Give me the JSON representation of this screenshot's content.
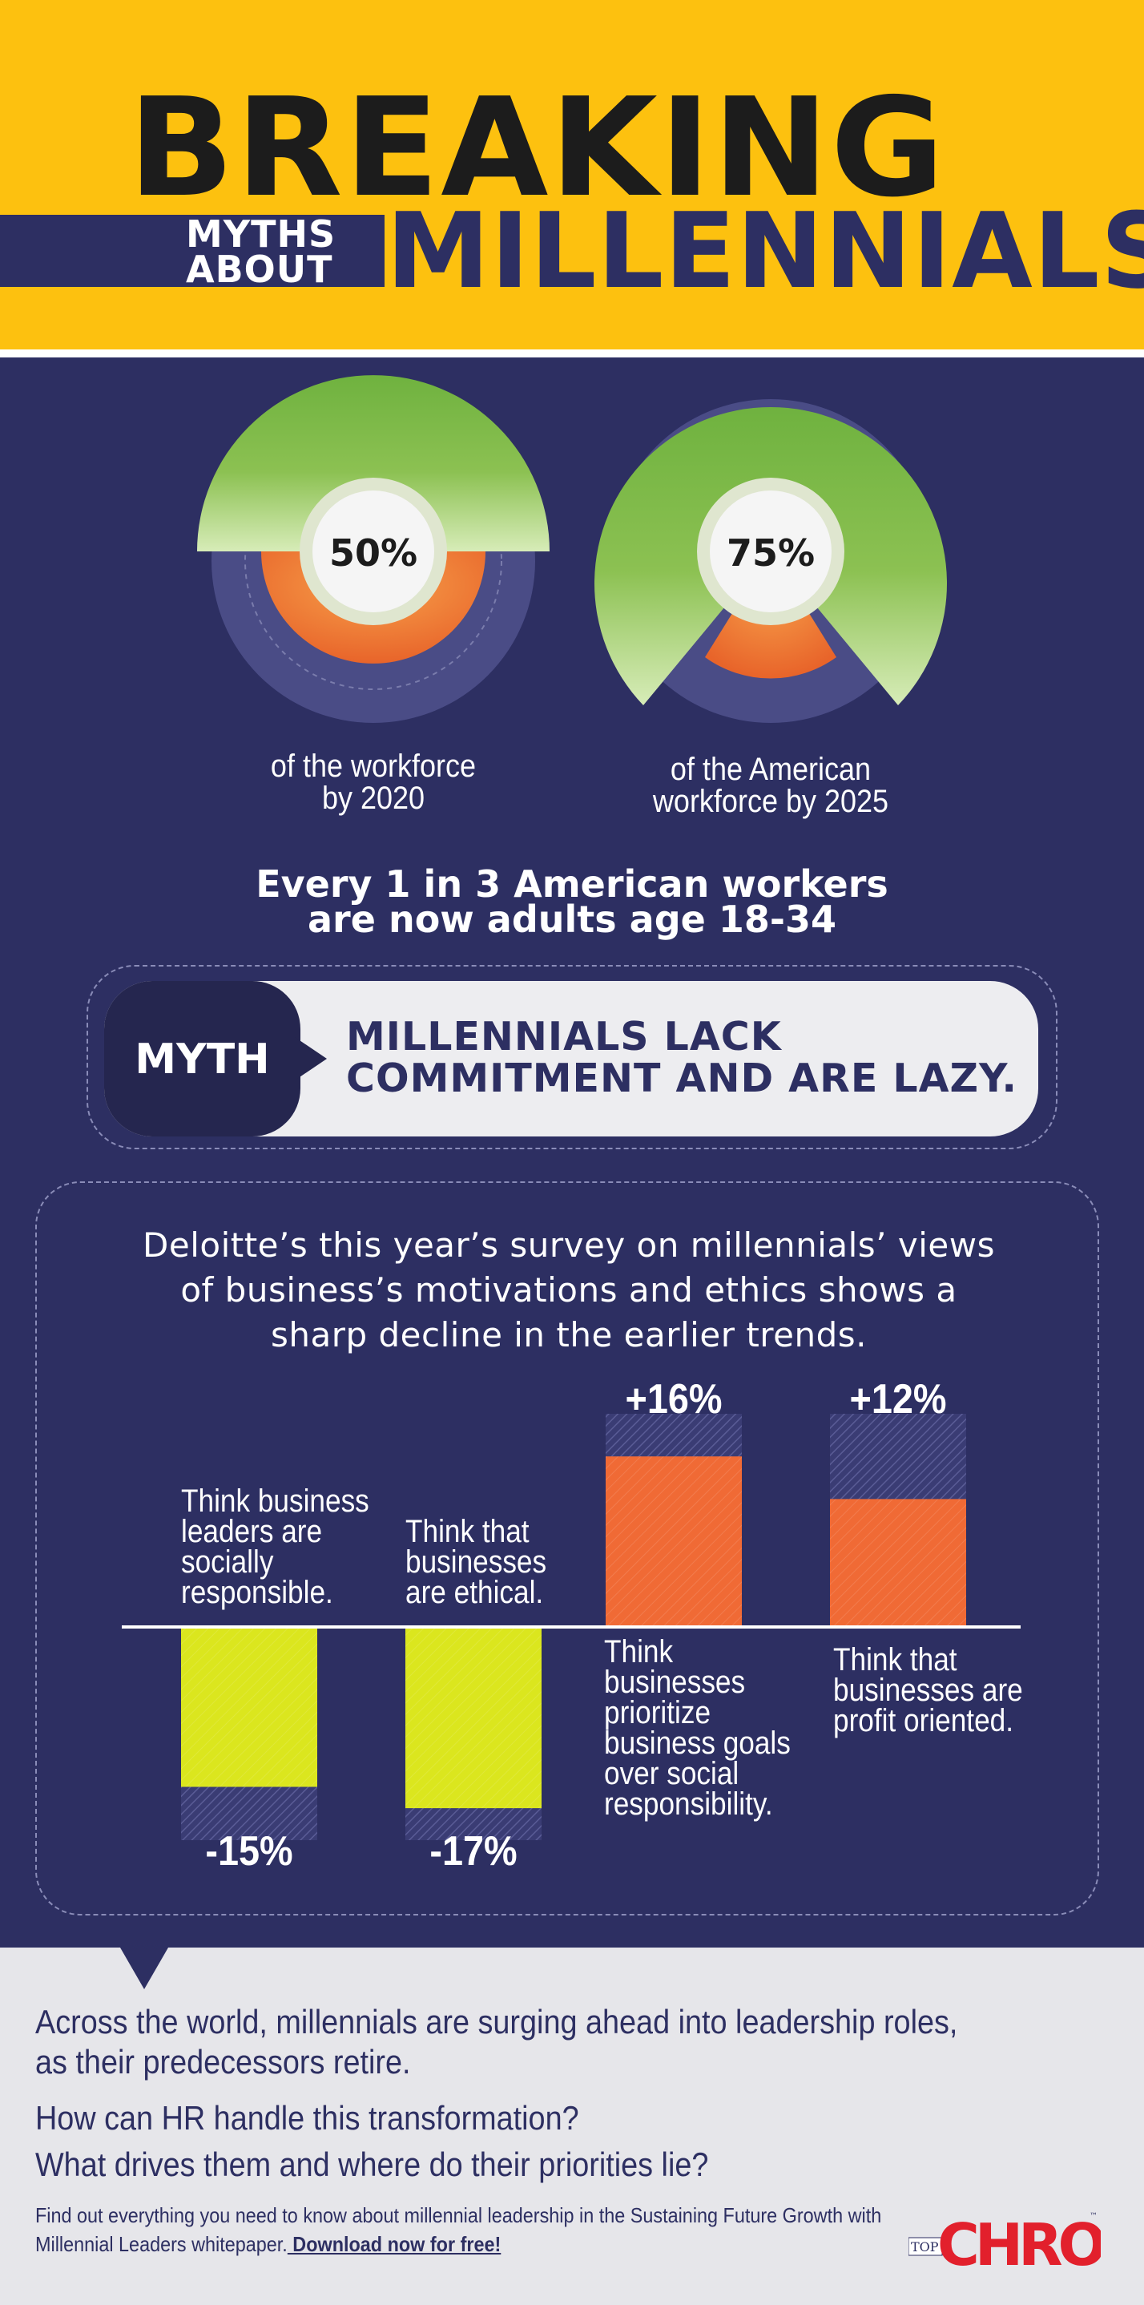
{
  "header": {
    "title": "BREAKING",
    "subtitle_small": [
      "MYTHS",
      "ABOUT"
    ],
    "subtitle_large": "MILLENNIALS"
  },
  "stats": {
    "donuts": [
      {
        "value": "50%",
        "caption": [
          "of the workforce",
          "by 2020"
        ]
      },
      {
        "value": "75%",
        "caption": [
          "of the American",
          "workforce by 2025"
        ]
      }
    ],
    "line": [
      "Every 1 in 3 American workers",
      "are now adults age 18-34"
    ]
  },
  "myth": {
    "tag": "MYTH",
    "text": [
      "MILLENNIALS LACK",
      "COMMITMENT AND ARE LAZY."
    ]
  },
  "survey": {
    "intro": [
      "Deloitte’s this year’s survey on millennials’ views",
      "of business’s motivations and ethics shows a",
      "sharp decline in the earlier trends."
    ]
  },
  "chart_data": {
    "type": "bar",
    "categories": [
      "Think business leaders are socially responsible.",
      "Think that businesses are ethical.",
      "Think businesses prioritize business goals over social responsibility.",
      "Think that businesses are profit oriented."
    ],
    "values": [
      -15,
      -17,
      16,
      12
    ],
    "value_labels": [
      "-15%",
      "-17%",
      "+16%",
      "+12%"
    ],
    "label_lines": [
      [
        "Think business",
        "leaders are",
        "socially",
        "responsible."
      ],
      [
        "Think that",
        "businesses",
        "are ethical."
      ],
      [
        "Think",
        "businesses",
        "prioritize",
        "business goals",
        "over social",
        "responsibility."
      ],
      [
        "Think that",
        "businesses are",
        "profit oriented."
      ]
    ],
    "colors": {
      "negative": "#dbe61e",
      "positive": "#f06a35",
      "hatch": "#4a4c86"
    }
  },
  "footer": {
    "lines": [
      "Across the world, millennials are surging ahead into leadership roles,",
      "as their predecessors retire.",
      "How can HR handle this transformation?",
      "What drives them and where do their priorities lie?"
    ],
    "small_1": "Find out everything you need to know about millennial leadership in the Sustaining Future Growth with",
    "small_2": "Millennial Leaders whitepaper.",
    "link": " Download now for free!",
    "logo_top": "TOP",
    "logo_main": "CHRO",
    "logo_tm": "™"
  },
  "colors": {
    "yellow": "#fdc10f",
    "navy": "#2d2f62",
    "green": "#7ab648",
    "orange": "#f06a35",
    "lime": "#dbe61e",
    "red": "#e2202c"
  }
}
